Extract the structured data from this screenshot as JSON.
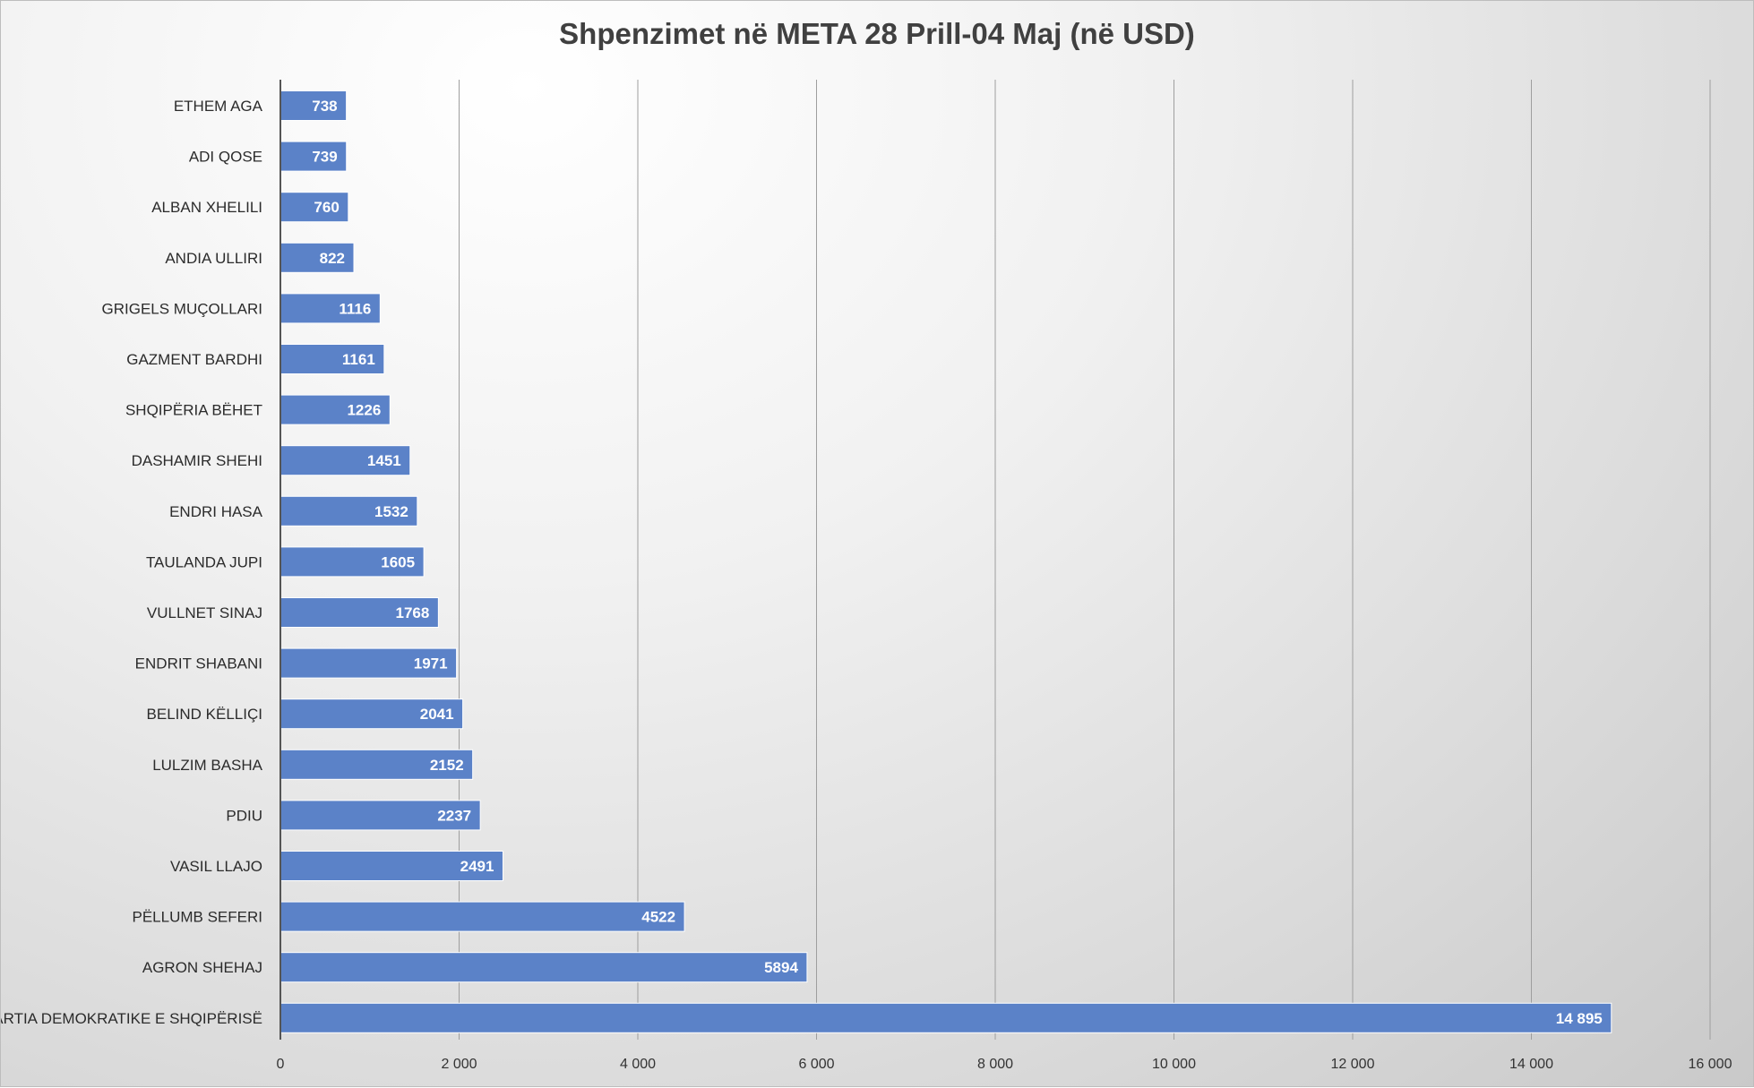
{
  "chart_data": {
    "type": "bar",
    "orientation": "horizontal",
    "title": "Shpenzimet në META 28 Prill-04 Maj (në USD)",
    "xlabel": "",
    "ylabel": "",
    "xlim": [
      0,
      16000
    ],
    "ticks": [
      0,
      2000,
      4000,
      6000,
      8000,
      10000,
      12000,
      14000,
      16000
    ],
    "tick_labels": [
      "0",
      "2 000",
      "4 000",
      "6 000",
      "8 000",
      "10 000",
      "12 000",
      "14 000",
      "16 000"
    ],
    "grid": "vertical",
    "legend": "none",
    "bar_color": "#5b82c8",
    "categories": [
      "ETHEM AGA",
      "ADI QOSE",
      "ALBAN XHELILI",
      "ANDIA ULLIRI",
      "GRIGELS MUÇOLLARI",
      "GAZMENT BARDHI",
      "SHQIPËRIA BËHET",
      "DASHAMIR SHEHI",
      "ENDRI HASA",
      "TAULANDA JUPI",
      "VULLNET SINAJ",
      "ENDRIT SHABANI",
      "BELIND KËLLIÇI",
      "LULZIM BASHA",
      "PDIU",
      "VASIL LLAJO",
      "PËLLUMB SEFERI",
      "AGRON SHEHAJ",
      "PARTIA DEMOKRATIKE E SHQIPËRISË"
    ],
    "values": [
      738,
      739,
      760,
      822,
      1116,
      1161,
      1226,
      1451,
      1532,
      1605,
      1768,
      1971,
      2041,
      2152,
      2237,
      2491,
      4522,
      5894,
      14895
    ],
    "value_labels": [
      "738",
      "739",
      "760",
      "822",
      "1116",
      "1161",
      "1226",
      "1451",
      "1532",
      "1605",
      "1768",
      "1971",
      "2041",
      "2152",
      "2237",
      "2491",
      "4522",
      "5894",
      "14 895"
    ]
  }
}
